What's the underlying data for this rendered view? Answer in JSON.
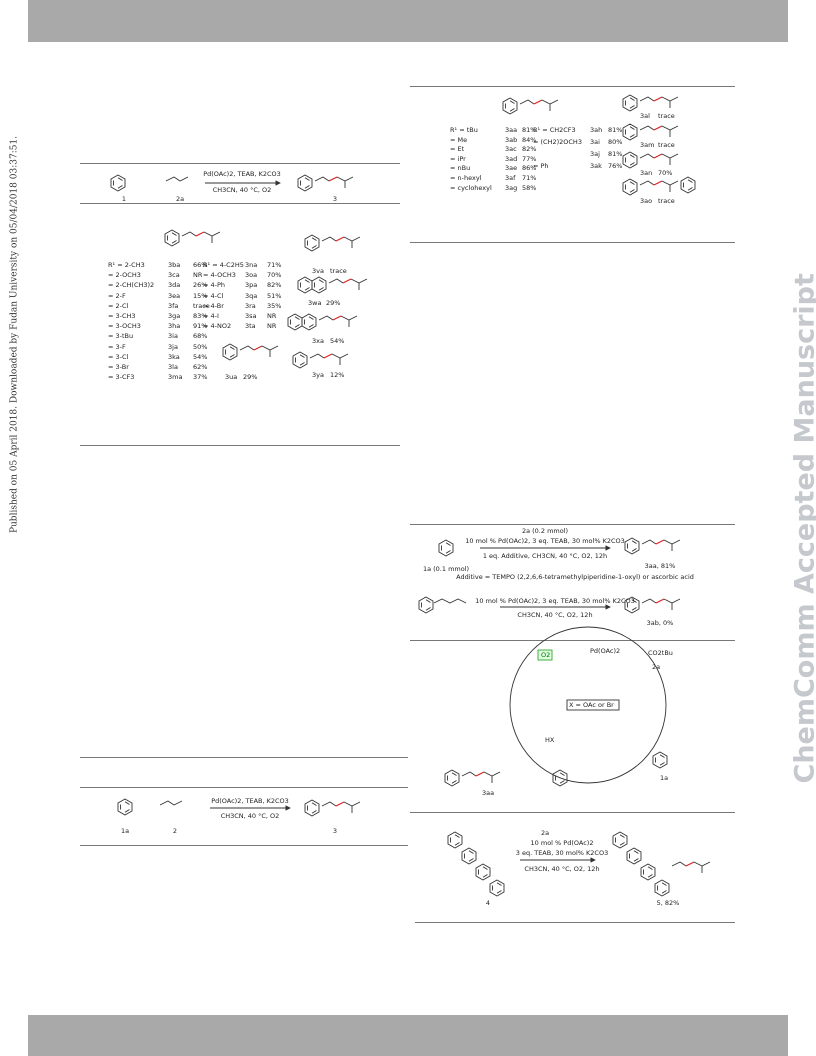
{
  "side_note": "Published on 05 April 2018. Downloaded by Fudan University on 05/04/2018 03:37:51.",
  "watermark": "ChemComm Accepted Manuscript",
  "scheme_top_left": {
    "reagents": "Pd(OAc)2, TEAB, K2CO3",
    "conditions": "CH3CN, 40 °C, O2",
    "labels": [
      "1",
      "2a",
      "3"
    ]
  },
  "substrate_table": {
    "left": [
      {
        "name": "R¹ = 2-CH3",
        "code": "3ba",
        "yield": "66%"
      },
      {
        "name": "= 2-OCH3",
        "code": "3ca",
        "yield": "NR"
      },
      {
        "name": "= 2-CH(CH3)2",
        "code": "3da",
        "yield": "26%"
      },
      {
        "name": "= 2-F",
        "code": "3ea",
        "yield": "15%"
      },
      {
        "name": "= 2-Cl",
        "code": "3fa",
        "yield": "trace"
      },
      {
        "name": "= 3-CH3",
        "code": "3ga",
        "yield": "83%"
      },
      {
        "name": "= 3-OCH3",
        "code": "3ha",
        "yield": "91%"
      },
      {
        "name": "= 3-tBu",
        "code": "3ia",
        "yield": "68%"
      },
      {
        "name": "= 3-F",
        "code": "3ja",
        "yield": "50%"
      },
      {
        "name": "= 3-Cl",
        "code": "3ka",
        "yield": "54%"
      },
      {
        "name": "= 3-Br",
        "code": "3la",
        "yield": "62%"
      },
      {
        "name": "= 3-CF3",
        "code": "3ma",
        "yield": "37%"
      }
    ],
    "right": [
      {
        "name": "R¹ = 4-C2H5",
        "code": "3na",
        "yield": "71%"
      },
      {
        "name": "= 4-OCH3",
        "code": "3oa",
        "yield": "70%"
      },
      {
        "name": "= 4-Ph",
        "code": "3pa",
        "yield": "82%"
      },
      {
        "name": "= 4-Cl",
        "code": "3qa",
        "yield": "51%"
      },
      {
        "name": "= 4-Br",
        "code": "3ra",
        "yield": "35%"
      },
      {
        "name": "= 4-I",
        "code": "3sa",
        "yield": "NR"
      },
      {
        "name": "= 4-NO2",
        "code": "3ta",
        "yield": "NR"
      }
    ],
    "extras": [
      {
        "code": "3va",
        "yield": "trace"
      },
      {
        "code": "3wa",
        "yield": "29%"
      },
      {
        "code": "3xa",
        "yield": "54%"
      },
      {
        "code": "3ya",
        "yield": "12%"
      },
      {
        "code": "3ua",
        "yield": "29%"
      }
    ]
  },
  "ester_table": {
    "left": [
      {
        "name": "R¹ = tBu",
        "code": "3aa",
        "yield": "81%"
      },
      {
        "name": "= Me",
        "code": "3ab",
        "yield": "84%"
      },
      {
        "name": "= Et",
        "code": "3ac",
        "yield": "82%"
      },
      {
        "name": "= iPr",
        "code": "3ad",
        "yield": "77%"
      },
      {
        "name": "= nBu",
        "code": "3ae",
        "yield": "86%"
      },
      {
        "name": "= n-hexyl",
        "code": "3af",
        "yield": "71%"
      },
      {
        "name": "= cyclohexyl",
        "code": "3ag",
        "yield": "58%"
      }
    ],
    "right": [
      {
        "name": "R¹ = CH2CF3",
        "code": "3ah",
        "yield": "81%"
      },
      {
        "name": "= (CH2)2OCH3",
        "code": "3ai",
        "yield": "80%"
      },
      {
        "code": "3aj",
        "yield": "81%"
      },
      {
        "name": "= Ph",
        "code": "3ak",
        "yield": "76%"
      }
    ],
    "extras": [
      {
        "code": "3al",
        "yield": "trace"
      },
      {
        "code": "3am",
        "yield": "trace"
      },
      {
        "code": "3an",
        "yield": "70%"
      },
      {
        "code": "3ao",
        "yield": "trace"
      }
    ]
  },
  "control": {
    "reagent_top": "2a (0.2 mmol)",
    "reagent_mid": "10 mol % Pd(OAc)2, 3 eq. TEAB, 30 mol% K2CO3",
    "reagent_bottom": "1 eq. Additive, CH3CN, 40 °C, O2, 12h",
    "substrate": "1a (0.1 mmol)",
    "product": "3aa, 81%",
    "additive_note": "Additive = TEMPO (2,2,6,6-tetramethylpiperidine-1-oxyl) or ascorbic acid",
    "reagent2_top": "10 mol % Pd(OAc)2, 3 eq. TEAB, 30 mol% K2CO3",
    "reagent2_bottom": "CH3CN, 40 °C, O2, 12h",
    "product2": "3ab, 0%"
  },
  "mechanism": {
    "oxidant": "O2",
    "catalyst": "Pd(OAc)2",
    "ester": "CO2tBu",
    "alkene": "2a",
    "legend": "X = OAc or Br",
    "acid": "HX",
    "phenol": "1a",
    "product": "3aa"
  },
  "scheme_bottom_left": {
    "reagents": "Pd(OAc)2, TEAB, K2CO3",
    "conditions": "CH3CN, 40 °C, O2",
    "labels": [
      "1a",
      "2",
      "3"
    ]
  },
  "scheme_bottom_right": {
    "reagent": "2a",
    "line1": "10 mol % Pd(OAc)2",
    "line2": "3 eq. TEAB, 30 mol% K2CO3",
    "line3": "CH3CN, 40 °C, O2, 12h",
    "substrate": "4",
    "product": "5, 82%"
  }
}
